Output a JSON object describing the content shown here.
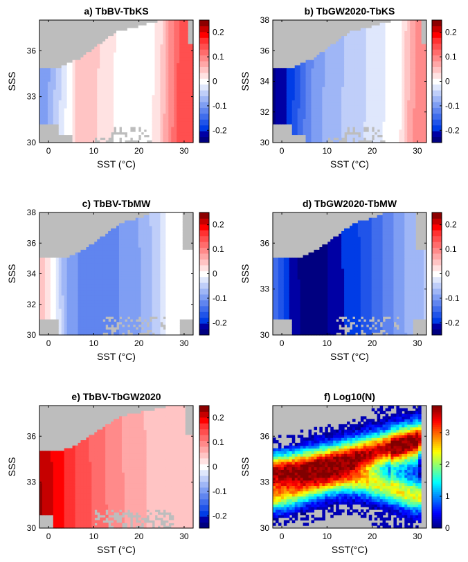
{
  "chart_data": [
    {
      "type": "heatmap",
      "title": "a) TbBV-TbKS",
      "xlabel": "SST (°C)",
      "ylabel": "SSS",
      "xlim": [
        -2,
        32
      ],
      "ylim": [
        30,
        38
      ],
      "xticks": [
        "0",
        "10",
        "20",
        "30"
      ],
      "yticks": [
        "30",
        "33",
        "36"
      ],
      "xtick_values": [
        0,
        10,
        20,
        30
      ],
      "ytick_values": [
        30,
        33,
        36
      ],
      "colorbar": {
        "range": [
          -0.25,
          0.25
        ],
        "ticks": [
          "0.2",
          "0.1",
          "0",
          "-0.1",
          "-0.2"
        ],
        "tick_values": [
          0.2,
          0.1,
          0,
          -0.1,
          -0.2
        ],
        "colormap": "blue-white-red"
      },
      "missing_color": "#bdbdbd",
      "profile_x": [
        -2,
        0,
        1,
        2,
        3,
        4,
        5,
        6,
        8,
        10,
        12,
        14,
        15,
        16,
        18,
        20,
        22,
        24,
        25,
        26,
        27,
        28,
        29,
        30,
        31,
        32
      ],
      "profile_v": [
        -0.1,
        -0.09,
        -0.07,
        -0.05,
        -0.03,
        -0.01,
        0.0,
        0.04,
        0.04,
        0.04,
        0.035,
        0.03,
        0.0,
        0.0,
        0.0,
        0.0,
        0.0,
        0.02,
        0.04,
        0.07,
        0.1,
        0.12,
        0.15,
        0.16,
        0.16,
        0.16
      ],
      "mask": "ab"
    },
    {
      "type": "heatmap",
      "title": "b) TbGW2020-TbKS",
      "xlabel": "SST (°C)",
      "ylabel": "SSS",
      "xlim": [
        -2,
        32
      ],
      "ylim": [
        30,
        38
      ],
      "xticks": [
        "0",
        "10",
        "20",
        "30"
      ],
      "yticks": [
        "30",
        "32",
        "34",
        "36",
        "38"
      ],
      "xtick_values": [
        0,
        10,
        20,
        30
      ],
      "ytick_values": [
        30,
        32,
        34,
        36,
        38
      ],
      "colorbar": {
        "range": [
          -0.25,
          0.25
        ],
        "ticks": [
          "0.2",
          "0.1",
          "0",
          "-0.1",
          "-0.2"
        ],
        "tick_values": [
          0.2,
          0.1,
          0,
          -0.1,
          -0.2
        ],
        "colormap": "blue-white-red"
      },
      "missing_color": "#bdbdbd",
      "profile_x": [
        -2,
        0,
        2,
        4,
        6,
        8,
        10,
        12,
        14,
        16,
        18,
        20,
        22,
        24,
        25,
        26,
        27,
        28,
        29,
        30,
        31,
        32
      ],
      "profile_v": [
        -0.24,
        -0.23,
        -0.2,
        -0.16,
        -0.12,
        -0.1,
        -0.08,
        -0.07,
        -0.06,
        -0.05,
        -0.04,
        -0.03,
        -0.02,
        0.0,
        0.0,
        0.0,
        0.03,
        0.06,
        0.08,
        0.1,
        0.1,
        0.1
      ],
      "mask": "ab"
    },
    {
      "type": "heatmap",
      "title": "c) TbBV-TbMW",
      "xlabel": "SST (°C)",
      "ylabel": "SSS",
      "xlim": [
        -2,
        32
      ],
      "ylim": [
        30,
        38
      ],
      "xticks": [
        "0",
        "10",
        "20",
        "30"
      ],
      "yticks": [
        "30",
        "32",
        "34",
        "36",
        "38"
      ],
      "xtick_values": [
        0,
        10,
        20,
        30
      ],
      "ytick_values": [
        30,
        32,
        34,
        36,
        38
      ],
      "colorbar": {
        "range": [
          -0.25,
          0.25
        ],
        "ticks": [
          "0.2",
          "0.1",
          "0",
          "-0.1",
          "-0.2"
        ],
        "tick_values": [
          0.2,
          0.1,
          0,
          -0.1,
          -0.2
        ],
        "colormap": "blue-white-red"
      },
      "missing_color": "#bdbdbd",
      "profile_x": [
        -2,
        -1,
        0,
        1,
        2,
        3,
        4,
        6,
        8,
        10,
        12,
        14,
        16,
        18,
        20,
        22,
        24,
        25,
        26,
        27,
        28,
        30,
        32
      ],
      "profile_v": [
        0.06,
        0.04,
        0.02,
        0.0,
        -0.02,
        -0.06,
        -0.09,
        -0.11,
        -0.12,
        -0.13,
        -0.13,
        -0.12,
        -0.11,
        -0.1,
        -0.09,
        -0.07,
        -0.05,
        -0.03,
        -0.01,
        0.0,
        0.0,
        0.0,
        0.0
      ],
      "mask": "cd"
    },
    {
      "type": "heatmap",
      "title": "d) TbGW2020-TbMW",
      "xlabel": "SST (°C)",
      "ylabel": "SSS",
      "xlim": [
        -2,
        32
      ],
      "ylim": [
        30,
        38
      ],
      "xticks": [
        "0",
        "10",
        "20",
        "30"
      ],
      "yticks": [
        "30",
        "33",
        "36"
      ],
      "xtick_values": [
        0,
        10,
        20,
        30
      ],
      "ytick_values": [
        30,
        33,
        36
      ],
      "colorbar": {
        "range": [
          -0.25,
          0.25
        ],
        "ticks": [
          "0.2",
          "0.1",
          "0",
          "-0.1",
          "-0.2"
        ],
        "tick_values": [
          0.2,
          0.1,
          0,
          -0.1,
          -0.2
        ],
        "colormap": "blue-white-red"
      },
      "missing_color": "#bdbdbd",
      "profile_x": [
        -2,
        0,
        2,
        4,
        6,
        8,
        10,
        12,
        14,
        16,
        18,
        20,
        22,
        24,
        26,
        28,
        30,
        32
      ],
      "profile_v": [
        -0.14,
        -0.18,
        -0.22,
        -0.24,
        -0.25,
        -0.25,
        -0.24,
        -0.22,
        -0.21,
        -0.2,
        -0.18,
        -0.16,
        -0.14,
        -0.12,
        -0.1,
        -0.08,
        -0.07,
        -0.06
      ],
      "mask": "cd"
    },
    {
      "type": "heatmap",
      "title": "e) TbBV-TbGW2020",
      "xlabel": "SST (°C)",
      "ylabel": "SSS",
      "xlim": [
        -2,
        32
      ],
      "ylim": [
        30,
        38
      ],
      "xticks": [
        "0",
        "10",
        "20",
        "30"
      ],
      "yticks": [
        "30",
        "33",
        "36"
      ],
      "xtick_values": [
        0,
        10,
        20,
        30
      ],
      "ytick_values": [
        30,
        33,
        36
      ],
      "colorbar": {
        "range": [
          -0.25,
          0.25
        ],
        "ticks": [
          "0.2",
          "0.1",
          "0",
          "-0.1",
          "-0.2"
        ],
        "tick_values": [
          0.2,
          0.1,
          0,
          -0.1,
          -0.2
        ],
        "colormap": "blue-white-red"
      },
      "missing_color": "#bdbdbd",
      "profile_x": [
        -2,
        0,
        2,
        4,
        6,
        8,
        10,
        12,
        14,
        16,
        18,
        20,
        22,
        24,
        26,
        28,
        30,
        32
      ],
      "profile_v": [
        0.24,
        0.22,
        0.2,
        0.18,
        0.16,
        0.15,
        0.13,
        0.12,
        0.1,
        0.09,
        0.08,
        0.07,
        0.06,
        0.06,
        0.06,
        0.06,
        0.06,
        0.06
      ],
      "mask": "e"
    },
    {
      "type": "heatmap",
      "title": "f) Log10(N)",
      "xlabel": "SST(°C)",
      "ylabel": "SSS",
      "xlim": [
        -2,
        32
      ],
      "ylim": [
        30,
        38
      ],
      "xticks": [
        "0",
        "10",
        "20",
        "30"
      ],
      "yticks": [
        "30",
        "33",
        "36"
      ],
      "xtick_values": [
        0,
        10,
        20,
        30
      ],
      "ytick_values": [
        30,
        33,
        36
      ],
      "colorbar": {
        "range": [
          0,
          3.85
        ],
        "ticks": [
          "3",
          "2",
          "1",
          "0"
        ],
        "tick_values": [
          3,
          2,
          1,
          0
        ],
        "colormap": "jet"
      },
      "missing_color": "#bdbdbd",
      "mask": "f"
    }
  ]
}
